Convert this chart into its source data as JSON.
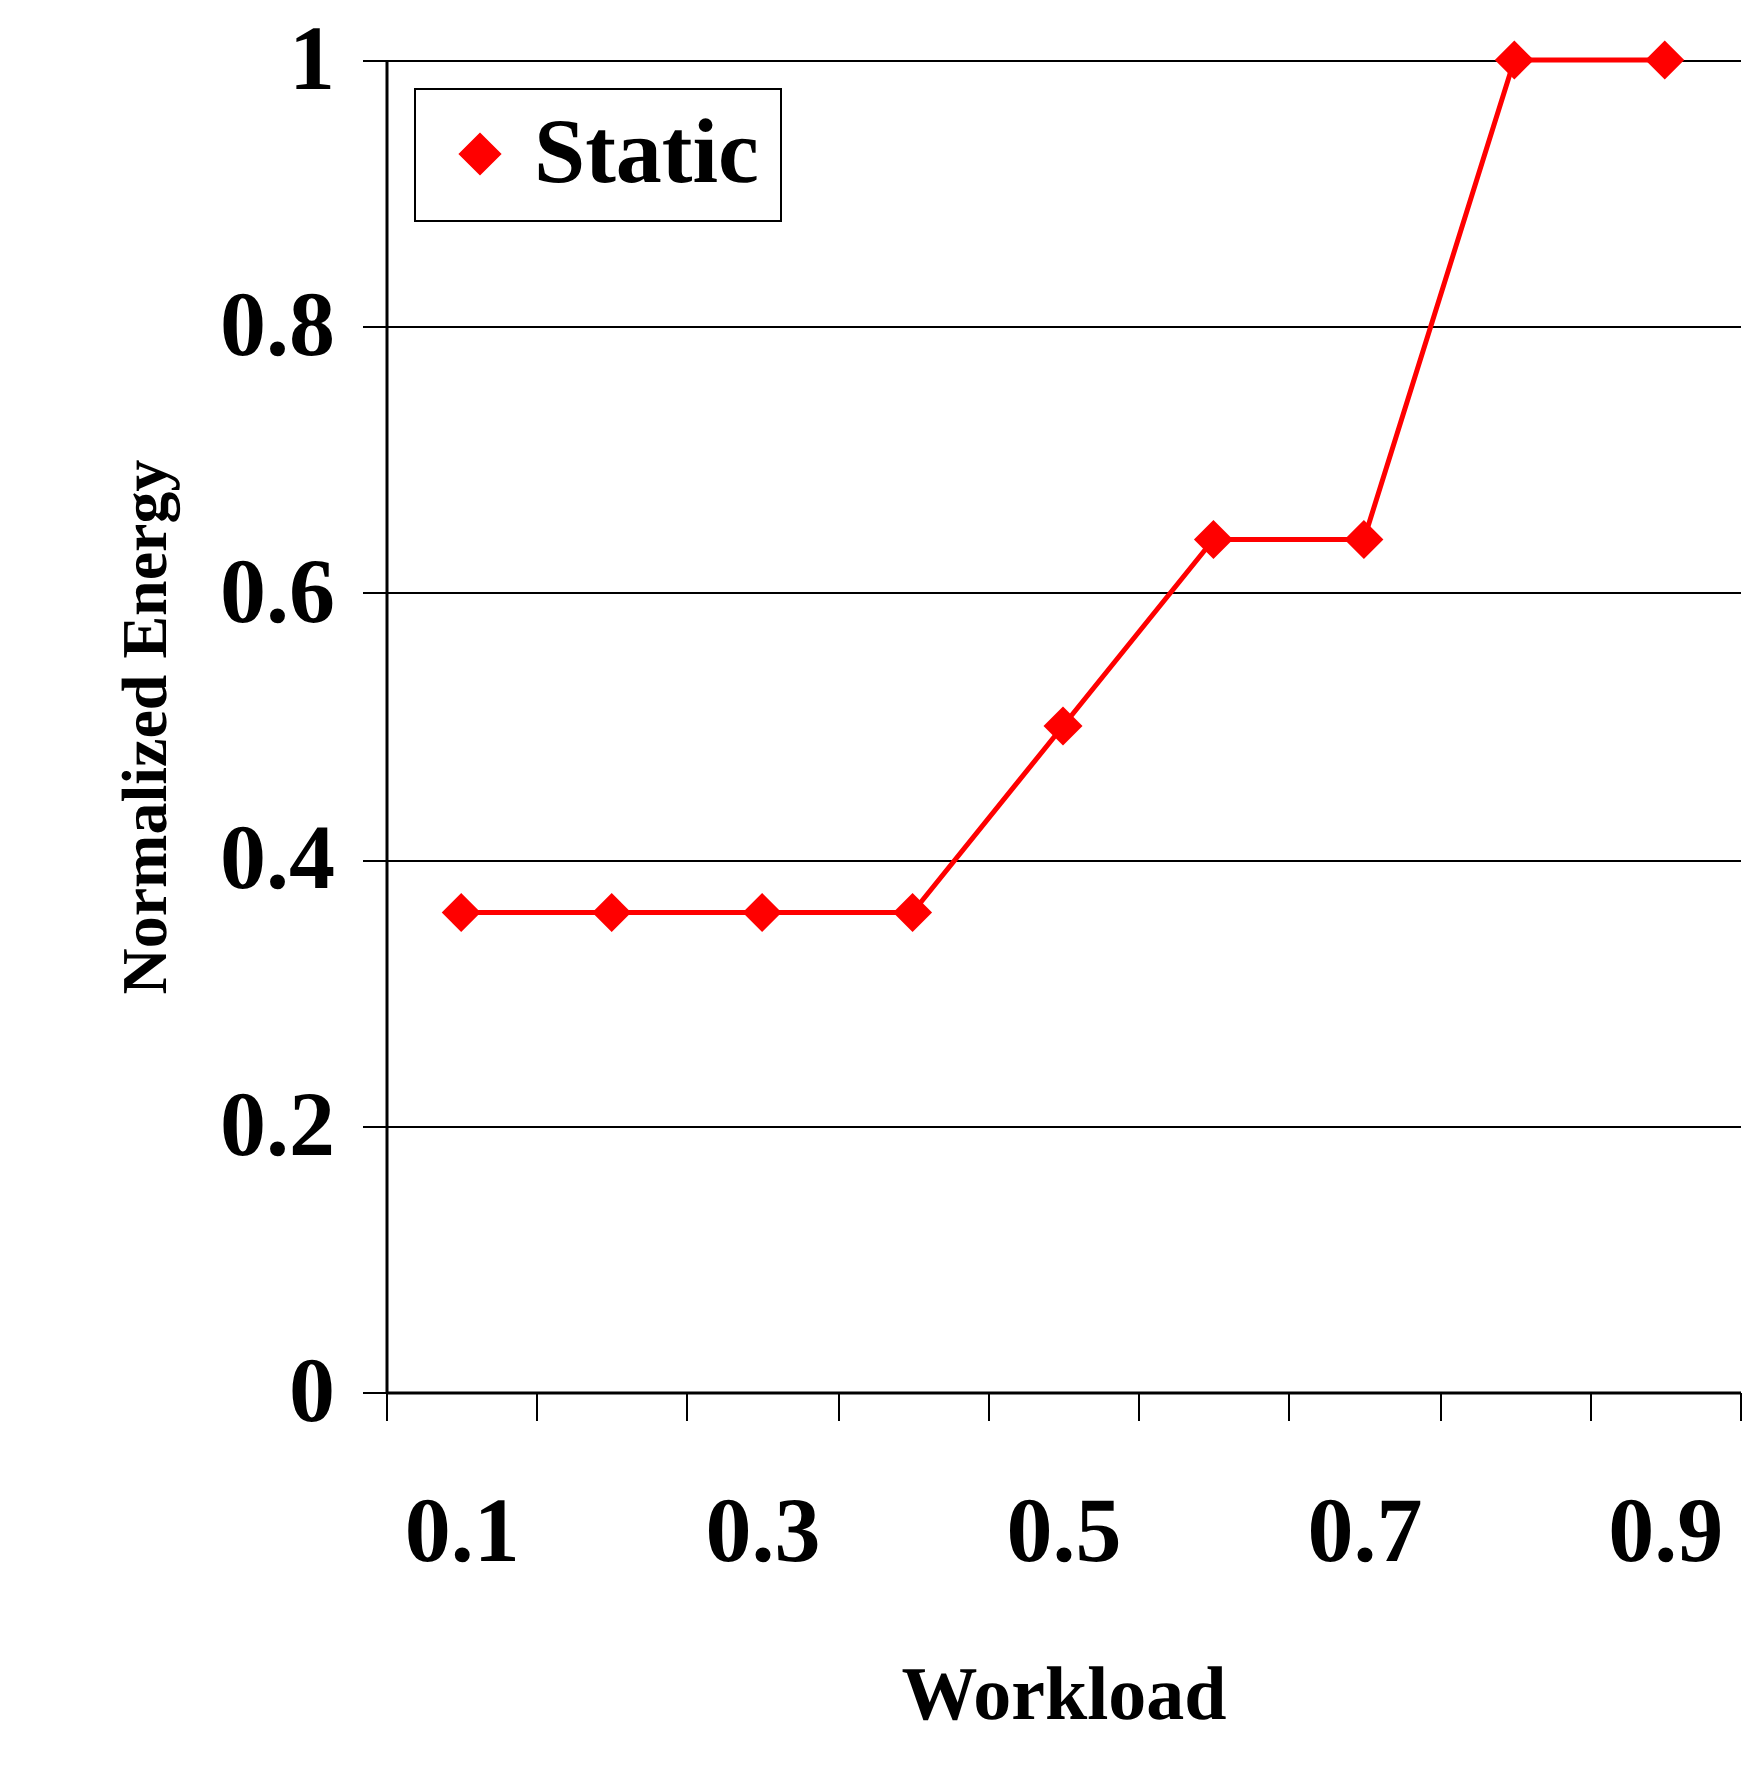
{
  "chart_data": {
    "type": "line",
    "xlabel": "Workload",
    "ylabel": "Normalized Energy",
    "categories": [
      "0.1",
      null,
      "0.3",
      null,
      "0.5",
      null,
      "0.7",
      null,
      "0.9"
    ],
    "series": [
      {
        "name": "Static",
        "color": "#ff0000",
        "values": [
          0.36,
          0.36,
          0.36,
          0.36,
          0.5,
          0.64,
          0.64,
          1,
          1
        ]
      }
    ],
    "ylim": [
      0,
      1
    ],
    "yticks": [
      0,
      0.2,
      0.4,
      0.6,
      0.8,
      1
    ],
    "grid": "y",
    "legend": "top left",
    "marker": "diamond",
    "line_style": "solid"
  }
}
